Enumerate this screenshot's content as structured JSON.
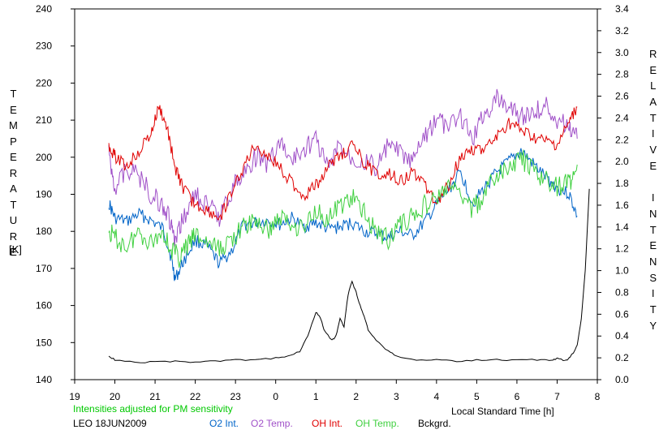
{
  "chart_data": {
    "type": "line",
    "xlabel": "Local Standard Time [h]",
    "left_axis": {
      "title": "TEMPERATURE",
      "unit": "[K]",
      "range": [
        140,
        240
      ],
      "ticks": [
        140,
        150,
        160,
        170,
        180,
        190,
        200,
        210,
        220,
        230,
        240
      ]
    },
    "right_axis": {
      "title": "RELATIVE INTENSITY",
      "range": [
        0.0,
        3.4
      ],
      "ticks": [
        "0.0",
        "0.2",
        "0.4",
        "0.6",
        "0.8",
        "1.0",
        "1.2",
        "1.4",
        "1.6",
        "1.8",
        "2.0",
        "2.2",
        "2.4",
        "2.6",
        "2.8",
        "3.0",
        "3.2",
        "3.4"
      ]
    },
    "x_axis": {
      "range": [
        19,
        32
      ],
      "tick_values": [
        19,
        20,
        21,
        22,
        23,
        24,
        25,
        26,
        27,
        28,
        29,
        30,
        31,
        32
      ],
      "tick_labels": [
        "19",
        "20",
        "21",
        "22",
        "23",
        "0",
        "1",
        "2",
        "3",
        "4",
        "5",
        "6",
        "7",
        "8"
      ]
    },
    "note": "Intensities adjusted for PM sensitivity",
    "site_date": "LEO 18JUN2009",
    "series": [
      {
        "name": "O2 Int.",
        "axis": "right",
        "color": "#0064c8",
        "x": [
          19.85,
          20.0,
          20.3,
          20.6,
          20.9,
          21.2,
          21.4,
          21.5,
          21.7,
          22.0,
          22.3,
          22.6,
          22.9,
          23.2,
          23.5,
          23.8,
          24.1,
          24.4,
          24.7,
          25.0,
          25.3,
          25.6,
          25.9,
          26.2,
          26.5,
          26.8,
          27.1,
          27.4,
          27.7,
          28.0,
          28.3,
          28.6,
          28.9,
          29.2,
          29.5,
          29.8,
          30.1,
          30.4,
          30.7,
          31.0,
          31.3,
          31.5
        ],
        "values": [
          1.62,
          1.48,
          1.45,
          1.52,
          1.46,
          1.38,
          1.12,
          0.92,
          1.08,
          1.28,
          1.22,
          1.06,
          1.18,
          1.42,
          1.44,
          1.46,
          1.42,
          1.48,
          1.4,
          1.44,
          1.38,
          1.4,
          1.44,
          1.36,
          1.34,
          1.3,
          1.36,
          1.32,
          1.44,
          1.6,
          1.74,
          1.9,
          1.62,
          1.76,
          1.9,
          2.0,
          2.1,
          1.98,
          1.86,
          1.76,
          1.7,
          1.5
        ]
      },
      {
        "name": "O2 Temp.",
        "axis": "left",
        "color": "#a050c8",
        "x": [
          19.85,
          20.0,
          20.3,
          20.6,
          20.9,
          21.2,
          21.4,
          21.5,
          21.7,
          22.0,
          22.3,
          22.6,
          22.9,
          23.2,
          23.5,
          23.8,
          24.1,
          24.4,
          24.7,
          25.0,
          25.3,
          25.6,
          25.9,
          26.2,
          26.5,
          26.8,
          27.1,
          27.4,
          27.7,
          28.0,
          28.3,
          28.6,
          28.9,
          29.2,
          29.5,
          29.8,
          30.1,
          30.4,
          30.7,
          31.0,
          31.3,
          31.5
        ],
        "values": [
          201,
          192,
          197,
          195,
          190,
          187,
          182,
          176,
          184,
          190,
          187,
          184,
          191,
          196,
          200,
          198,
          204,
          199,
          202,
          205,
          197,
          203,
          200,
          199,
          197,
          203,
          201,
          198,
          206,
          210,
          208,
          211,
          205,
          212,
          216,
          214,
          211,
          212,
          214,
          210,
          208,
          205
        ]
      },
      {
        "name": "OH Int.",
        "axis": "right",
        "color": "#e00000",
        "x": [
          19.85,
          20.0,
          20.3,
          20.6,
          20.9,
          21.1,
          21.3,
          21.5,
          21.7,
          22.0,
          22.3,
          22.6,
          22.9,
          23.2,
          23.5,
          23.8,
          24.1,
          24.4,
          24.7,
          25.0,
          25.3,
          25.6,
          25.9,
          26.2,
          26.5,
          26.8,
          27.1,
          27.4,
          27.7,
          28.0,
          28.3,
          28.6,
          28.9,
          29.2,
          29.5,
          29.8,
          30.1,
          30.4,
          30.7,
          31.0,
          31.3,
          31.5
        ],
        "values": [
          2.15,
          2.05,
          1.95,
          2.1,
          2.25,
          2.5,
          2.3,
          1.95,
          1.75,
          1.6,
          1.55,
          1.48,
          1.7,
          1.95,
          2.15,
          2.05,
          1.95,
          1.8,
          1.68,
          1.78,
          1.95,
          2.05,
          2.15,
          2.0,
          1.88,
          1.9,
          1.82,
          1.9,
          1.8,
          1.62,
          1.78,
          2.05,
          2.12,
          2.1,
          2.22,
          2.35,
          2.28,
          2.22,
          2.18,
          2.15,
          2.35,
          2.5
        ]
      },
      {
        "name": "OH Temp.",
        "axis": "left",
        "color": "#40d040",
        "x": [
          19.85,
          20.0,
          20.3,
          20.6,
          20.9,
          21.2,
          21.4,
          21.6,
          21.8,
          22.0,
          22.3,
          22.6,
          22.9,
          23.2,
          23.5,
          23.8,
          24.1,
          24.4,
          24.7,
          25.0,
          25.3,
          25.6,
          25.9,
          26.2,
          26.5,
          26.8,
          27.1,
          27.4,
          27.7,
          28.0,
          28.3,
          28.6,
          28.9,
          29.2,
          29.5,
          29.8,
          30.1,
          30.4,
          30.7,
          31.0,
          31.3,
          31.5
        ],
        "values": [
          180,
          178,
          176,
          180,
          177,
          180,
          175,
          173,
          176,
          179,
          177,
          175,
          178,
          181,
          183,
          180,
          184,
          182,
          181,
          186,
          183,
          187,
          189,
          185,
          180,
          178,
          182,
          184,
          187,
          189,
          192,
          190,
          186,
          190,
          195,
          197,
          200,
          196,
          194,
          192,
          193,
          198
        ]
      },
      {
        "name": "Bckgrd.",
        "axis": "right",
        "color": "#000000",
        "x": [
          19.85,
          20.0,
          20.5,
          21.0,
          21.5,
          22.0,
          22.5,
          23.0,
          23.5,
          24.0,
          24.3,
          24.6,
          24.8,
          25.0,
          25.1,
          25.2,
          25.4,
          25.5,
          25.6,
          25.7,
          25.8,
          25.9,
          26.0,
          26.1,
          26.2,
          26.3,
          26.5,
          26.8,
          27.0,
          27.5,
          28.0,
          28.5,
          29.0,
          29.5,
          30.0,
          30.5,
          30.9,
          31.0,
          31.2,
          31.3,
          31.4,
          31.5,
          31.6,
          31.7,
          31.8
        ],
        "values": [
          0.22,
          0.18,
          0.16,
          0.16,
          0.17,
          0.16,
          0.17,
          0.18,
          0.18,
          0.2,
          0.22,
          0.26,
          0.4,
          0.62,
          0.58,
          0.46,
          0.36,
          0.4,
          0.56,
          0.48,
          0.78,
          0.9,
          0.8,
          0.68,
          0.58,
          0.46,
          0.36,
          0.26,
          0.22,
          0.18,
          0.18,
          0.17,
          0.18,
          0.18,
          0.18,
          0.18,
          0.18,
          0.2,
          0.17,
          0.2,
          0.24,
          0.32,
          0.55,
          1.0,
          1.75
        ]
      }
    ]
  }
}
